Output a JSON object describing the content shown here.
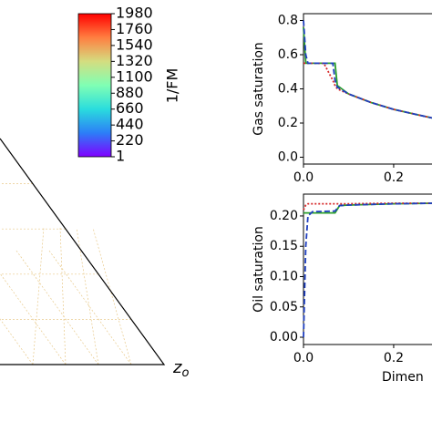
{
  "chart_data": [
    {
      "type": "colorbar",
      "label": "1/FM",
      "colormap": "rainbow",
      "ylim": [
        1,
        1980
      ],
      "yticks": [
        1,
        220,
        440,
        660,
        880,
        1100,
        1320,
        1540,
        1760,
        1980
      ]
    },
    {
      "type": "ternary",
      "corner_label": "z",
      "corner_label_sub": "o"
    },
    {
      "type": "line",
      "ylabel": "Gas saturation",
      "x": [
        0,
        0.005,
        0.01,
        0.045,
        0.065,
        0.07,
        0.075,
        0.1,
        0.15,
        0.2,
        0.25,
        0.285
      ],
      "series": [
        {
          "color": "#2ca02c",
          "dash": "solid",
          "values": [
            0.76,
            0.55,
            0.55,
            0.55,
            0.55,
            0.55,
            0.42,
            0.37,
            0.32,
            0.28,
            0.25,
            0.23
          ]
        },
        {
          "color": "#d62728",
          "dash": "dotted",
          "values": [
            0.55,
            0.55,
            0.55,
            0.55,
            0.45,
            0.42,
            0.4,
            0.37,
            0.32,
            0.28,
            0.25,
            0.23
          ]
        },
        {
          "color": "#1f3fbf",
          "dash": "dashed",
          "values": [
            0.8,
            0.6,
            0.55,
            0.55,
            0.55,
            0.45,
            0.41,
            0.37,
            0.32,
            0.28,
            0.25,
            0.23
          ]
        }
      ],
      "xlim": [
        0,
        0.285
      ],
      "ylim": [
        -0.04,
        0.84
      ],
      "xticks": [
        {
          "value": 0,
          "label": "0.0"
        },
        0.2
      ],
      "yticks": [
        {
          "value": 0,
          "label": "0.0"
        },
        0.2,
        0.4,
        0.6,
        0.8
      ]
    },
    {
      "type": "line",
      "ylabel": "Oil saturation",
      "xlabel": "Dimen",
      "x": [
        0,
        0.005,
        0.01,
        0.02,
        0.07,
        0.08,
        0.1,
        0.2,
        0.285
      ],
      "series": [
        {
          "color": "#2ca02c",
          "dash": "solid",
          "values": [
            0.205,
            0.205,
            0.205,
            0.205,
            0.205,
            0.217,
            0.218,
            0.22,
            0.221
          ]
        },
        {
          "color": "#d62728",
          "dash": "dotted",
          "values": [
            0.21,
            0.218,
            0.22,
            0.22,
            0.22,
            0.22,
            0.22,
            0.221,
            0.221
          ]
        },
        {
          "color": "#1f3fbf",
          "dash": "dashed",
          "values": [
            0,
            0.15,
            0.2,
            0.207,
            0.208,
            0.217,
            0.218,
            0.22,
            0.221
          ]
        }
      ],
      "xlim": [
        0,
        0.285
      ],
      "ylim": [
        -0.012,
        0.236
      ],
      "xticks": [
        {
          "value": 0,
          "label": "0.0"
        },
        0.2
      ],
      "yticks": [
        {
          "value": 0,
          "label": "0.00"
        },
        {
          "value": 0.05,
          "label": "0.05"
        },
        {
          "value": 0.1,
          "label": "0.10"
        },
        {
          "value": 0.15,
          "label": "0.15"
        },
        {
          "value": 0.2,
          "label": "0.20"
        }
      ]
    }
  ]
}
